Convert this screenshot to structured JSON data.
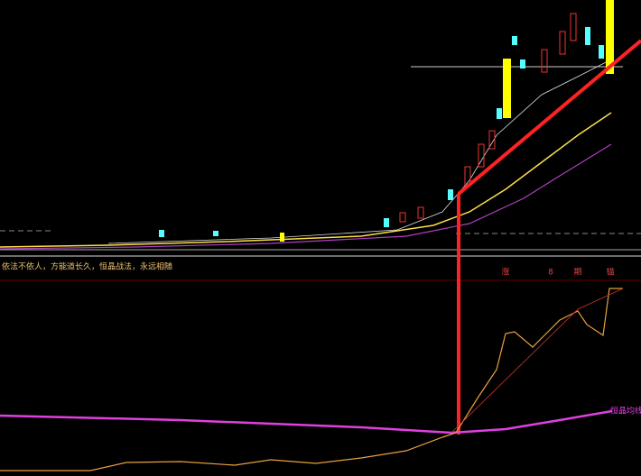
{
  "panel": {
    "caption": "依法不依人，方能道长久，恒晶战法，永远相随",
    "indicator_label": "恒晶均线",
    "markers": [
      "涨",
      "8",
      "期",
      "锚"
    ]
  }
}
